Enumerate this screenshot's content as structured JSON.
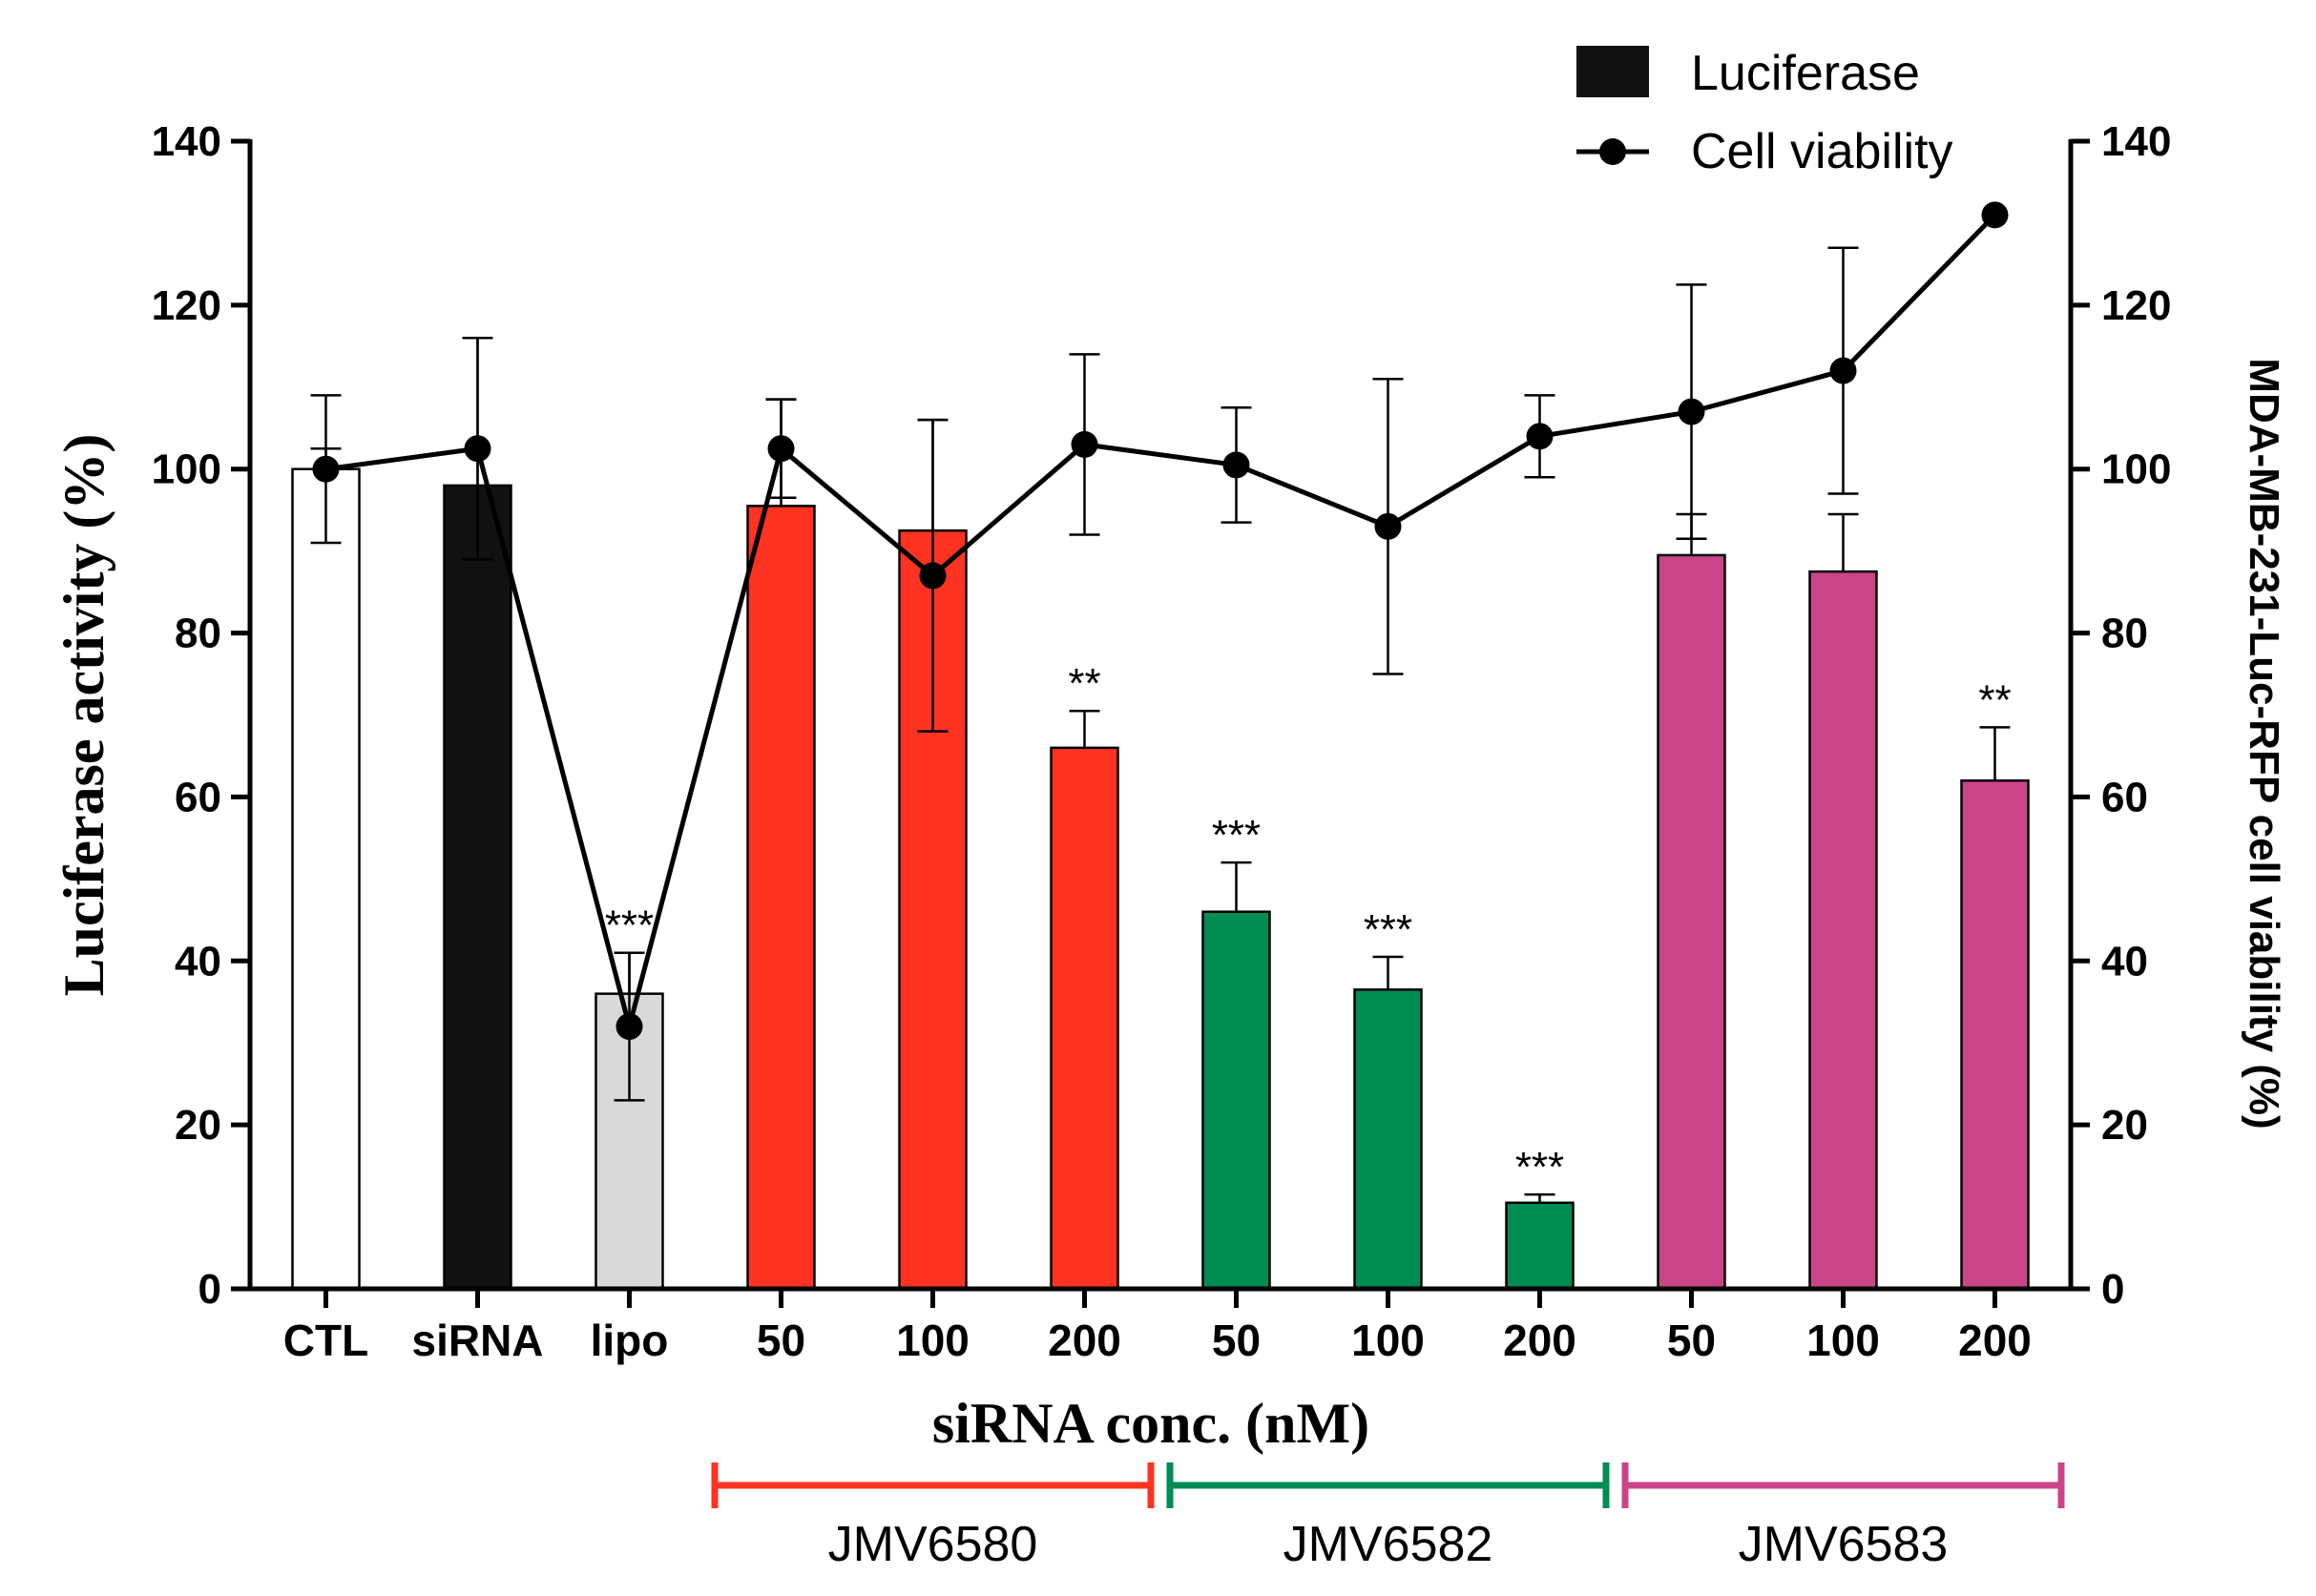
{
  "chart_data": {
    "type": "bar",
    "categories": [
      "CTL",
      "siRNA",
      "lipo",
      "50",
      "100",
      "200",
      "50",
      "100",
      "200",
      "50",
      "100",
      "200"
    ],
    "xlabel": "siRNA conc. (nM)",
    "ylabel": "Luciferase activity (%)",
    "ylabel_right": "MDA-MB-231-Luc-RFP cell viability (%)",
    "ylim": [
      0,
      140
    ],
    "yticks": [
      0,
      20,
      40,
      60,
      80,
      100,
      120,
      140
    ],
    "series": [
      {
        "name": "Luciferase",
        "kind": "bar",
        "values": [
          100,
          98,
          36,
          95.5,
          92.5,
          66,
          46,
          36.5,
          10.5,
          89.5,
          87.5,
          62
        ],
        "errors": [
          2.5,
          18,
          5,
          13,
          13.5,
          4.5,
          6,
          4,
          1,
          5,
          7,
          6.5
        ],
        "colors": [
          "#ffffff",
          "#111111",
          "#d9d9d9",
          "#ff3322",
          "#ff3322",
          "#ff3322",
          "#008c52",
          "#008c52",
          "#008c52",
          "#cc4488",
          "#cc4488",
          "#cc4488"
        ],
        "significance": [
          "",
          "",
          "***",
          "",
          "",
          "**",
          "***",
          "***",
          "***",
          "",
          "",
          "**"
        ]
      },
      {
        "name": "Cell viability",
        "kind": "line",
        "values": [
          100,
          102.5,
          32,
          102.5,
          87,
          103,
          100.5,
          93,
          104,
          107,
          112,
          131
        ],
        "errors": [
          9,
          13.5,
          9,
          6,
          19,
          11,
          7,
          18,
          5,
          15.5,
          15,
          0
        ]
      }
    ],
    "groups": [
      {
        "name": "JMV6580",
        "color": "#ff3322",
        "from": 3,
        "to": 5
      },
      {
        "name": "JMV6582",
        "color": "#008c52",
        "from": 6,
        "to": 8
      },
      {
        "name": "JMV6583",
        "color": "#cc4488",
        "from": 9,
        "to": 11
      }
    ],
    "legend": {
      "placement": "top-right",
      "items": [
        "Luciferase",
        "Cell viability"
      ]
    }
  }
}
